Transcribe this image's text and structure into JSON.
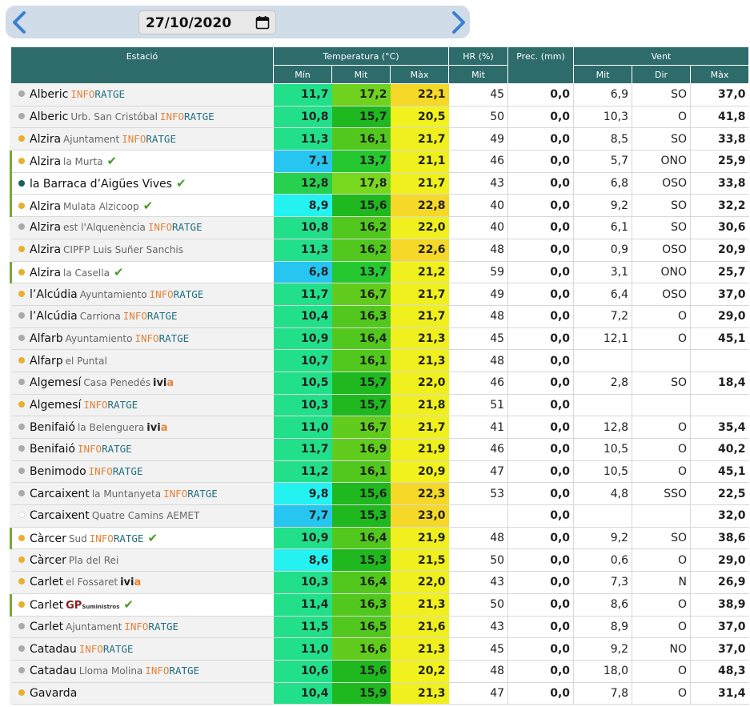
{
  "date": "27/10/2020",
  "header": {
    "estacio": "Estació",
    "temperatura": "Temperatura (°C)",
    "hr": "HR (%)",
    "prec": "Prec. (mm)",
    "vent": "Vent",
    "min": "Mín",
    "mit": "Mit",
    "max": "Màx",
    "hr_mit": "Mit",
    "vent_mit": "Mit",
    "vent_dir": "Dir",
    "vent_max": "Màx"
  },
  "rows": [
    {
      "town": "Alberic",
      "loc": "",
      "src": "inforatge",
      "check": false,
      "hl": false,
      "dot": "#aaaaaa",
      "min": "11,7",
      "mit": "17,2",
      "max": "22,1",
      "hr": "45",
      "prec": "0,0",
      "vmit": "6,9",
      "vdir": "SO",
      "vmax": "37,0",
      "cmin": "#22e08a",
      "cmit": "#6ed21e",
      "cmax": "#f5d828"
    },
    {
      "town": "Alberic",
      "loc": "Urb. San Cristóbal",
      "src": "inforatge",
      "check": false,
      "hl": false,
      "dot": "#aaaaaa",
      "min": "10,8",
      "mit": "15,7",
      "max": "20,5",
      "hr": "50",
      "prec": "0,0",
      "vmit": "10,3",
      "vdir": "O",
      "vmax": "41,8",
      "cmin": "#22e08a",
      "cmit": "#1fb81e",
      "cmax": "#f2f21e"
    },
    {
      "town": "Alzira",
      "loc": "Ajuntament",
      "src": "inforatge",
      "check": false,
      "hl": false,
      "dot": "#e8b030",
      "min": "11,3",
      "mit": "16,1",
      "max": "21,7",
      "hr": "49",
      "prec": "0,0",
      "vmit": "8,5",
      "vdir": "SO",
      "vmax": "33,8",
      "cmin": "#22e08a",
      "cmit": "#52c81e",
      "cmax": "#f0f01e"
    },
    {
      "town": "Alzira",
      "loc": "la Murta",
      "src": "",
      "check": true,
      "hl": true,
      "dot": "#e8b030",
      "min": "7,1",
      "mit": "13,7",
      "max": "21,1",
      "hr": "46",
      "prec": "0,0",
      "vmit": "5,7",
      "vdir": "ONO",
      "vmax": "25,9",
      "cmin": "#26c6f0",
      "cmit": "#26c830",
      "cmax": "#f0f01e"
    },
    {
      "town": "la Barraca d’Aigües Vives",
      "loc": "",
      "src": "",
      "check": true,
      "hl": true,
      "dot": "#1a6060",
      "min": "12,8",
      "mit": "17,8",
      "max": "21,7",
      "hr": "43",
      "prec": "0,0",
      "vmit": "6,8",
      "vdir": "OSO",
      "vmax": "33,8",
      "cmin": "#28d050",
      "cmit": "#78d81e",
      "cmax": "#f0f01e"
    },
    {
      "town": "Alzira",
      "loc": "Mulata Alzicoop",
      "src": "",
      "check": true,
      "hl": true,
      "dot": "#e8b030",
      "min": "8,9",
      "mit": "15,6",
      "max": "22,8",
      "hr": "40",
      "prec": "0,0",
      "vmit": "9,2",
      "vdir": "SO",
      "vmax": "32,2",
      "cmin": "#24f2f0",
      "cmit": "#1fb81e",
      "cmax": "#f5d828"
    },
    {
      "town": "Alzira",
      "loc": "est l'Alquenència",
      "src": "inforatge",
      "check": false,
      "hl": false,
      "dot": "#aaaaaa",
      "min": "10,8",
      "mit": "16,2",
      "max": "22,0",
      "hr": "40",
      "prec": "0,0",
      "vmit": "6,1",
      "vdir": "SO",
      "vmax": "30,6",
      "cmin": "#22e08a",
      "cmit": "#52c81e",
      "cmax": "#f0f01e"
    },
    {
      "town": "Alzira",
      "loc": "CIPFP Luis Suñer Sanchis",
      "src": "",
      "check": false,
      "hl": false,
      "dot": "#e8b030",
      "min": "11,3",
      "mit": "16,2",
      "max": "22,6",
      "hr": "48",
      "prec": "0,0",
      "vmit": "0,9",
      "vdir": "OSO",
      "vmax": "20,9",
      "cmin": "#22e08a",
      "cmit": "#52c81e",
      "cmax": "#f5d828"
    },
    {
      "town": "Alzira",
      "loc": "la Casella",
      "src": "",
      "check": true,
      "hl": true,
      "dot": "#e8b030",
      "min": "6,8",
      "mit": "13,7",
      "max": "21,2",
      "hr": "59",
      "prec": "0,0",
      "vmit": "3,1",
      "vdir": "ONO",
      "vmax": "25,7",
      "cmin": "#26c6f0",
      "cmit": "#26c830",
      "cmax": "#f0f01e"
    },
    {
      "town": "l’Alcúdia",
      "loc": "Ayuntamiento",
      "src": "inforatge",
      "check": false,
      "hl": false,
      "dot": "#e8b030",
      "min": "11,7",
      "mit": "16,7",
      "max": "21,7",
      "hr": "49",
      "prec": "0,0",
      "vmit": "6,4",
      "vdir": "OSO",
      "vmax": "37,0",
      "cmin": "#22e08a",
      "cmit": "#62cc1e",
      "cmax": "#f0f01e"
    },
    {
      "town": "l’Alcúdia",
      "loc": "Carriona",
      "src": "inforatge",
      "check": false,
      "hl": false,
      "dot": "#aaaaaa",
      "min": "10,4",
      "mit": "16,3",
      "max": "21,7",
      "hr": "48",
      "prec": "0,0",
      "vmit": "7,2",
      "vdir": "O",
      "vmax": "29,0",
      "cmin": "#22e08a",
      "cmit": "#52c81e",
      "cmax": "#f0f01e"
    },
    {
      "town": "Alfarb",
      "loc": "Ayuntamiento",
      "src": "inforatge",
      "check": false,
      "hl": false,
      "dot": "#aaaaaa",
      "min": "10,9",
      "mit": "16,4",
      "max": "21,3",
      "hr": "45",
      "prec": "0,0",
      "vmit": "12,1",
      "vdir": "O",
      "vmax": "45,1",
      "cmin": "#22e08a",
      "cmit": "#52c81e",
      "cmax": "#f0f01e"
    },
    {
      "town": "Alfarp",
      "loc": "el Puntal",
      "src": "",
      "check": false,
      "hl": false,
      "dot": "#e8b030",
      "min": "10,7",
      "mit": "16,1",
      "max": "21,3",
      "hr": "48",
      "prec": "0,0",
      "vmit": "",
      "vdir": "",
      "vmax": "",
      "cmin": "#22e08a",
      "cmit": "#52c81e",
      "cmax": "#f0f01e"
    },
    {
      "town": "Algemesí",
      "loc": "Casa Penedés",
      "src": "ivia",
      "check": false,
      "hl": false,
      "dot": "#aaaaaa",
      "min": "10,5",
      "mit": "15,7",
      "max": "22,0",
      "hr": "46",
      "prec": "0,0",
      "vmit": "2,8",
      "vdir": "SO",
      "vmax": "18,4",
      "cmin": "#22e08a",
      "cmit": "#1fb81e",
      "cmax": "#f0f01e"
    },
    {
      "town": "Algemesí",
      "loc": "",
      "src": "inforatge",
      "check": false,
      "hl": false,
      "dot": "#e8b030",
      "min": "10,3",
      "mit": "15,7",
      "max": "21,8",
      "hr": "51",
      "prec": "0,0",
      "vmit": "",
      "vdir": "",
      "vmax": "",
      "cmin": "#22e08a",
      "cmit": "#1fb81e",
      "cmax": "#f0f01e"
    },
    {
      "town": "Benifaió",
      "loc": "la Belenguera",
      "src": "ivia",
      "check": false,
      "hl": false,
      "dot": "#aaaaaa",
      "min": "11,0",
      "mit": "16,7",
      "max": "21,7",
      "hr": "41",
      "prec": "0,0",
      "vmit": "12,8",
      "vdir": "O",
      "vmax": "35,4",
      "cmin": "#22e08a",
      "cmit": "#62cc1e",
      "cmax": "#f0f01e"
    },
    {
      "town": "Benifaió",
      "loc": "",
      "src": "inforatge",
      "check": false,
      "hl": false,
      "dot": "#aaaaaa",
      "min": "11,7",
      "mit": "16,9",
      "max": "21,9",
      "hr": "46",
      "prec": "0,0",
      "vmit": "10,5",
      "vdir": "O",
      "vmax": "40,2",
      "cmin": "#22e08a",
      "cmit": "#62cc1e",
      "cmax": "#f0f01e"
    },
    {
      "town": "Benimodo",
      "loc": "",
      "src": "inforatge",
      "check": false,
      "hl": false,
      "dot": "#aaaaaa",
      "min": "11,2",
      "mit": "16,1",
      "max": "20,9",
      "hr": "47",
      "prec": "0,0",
      "vmit": "10,5",
      "vdir": "O",
      "vmax": "45,1",
      "cmin": "#22e08a",
      "cmit": "#52c81e",
      "cmax": "#f2f21e"
    },
    {
      "town": "Carcaixent",
      "loc": "la Muntanyeta",
      "src": "inforatge",
      "check": false,
      "hl": false,
      "dot": "#aaaaaa",
      "min": "9,8",
      "mit": "15,6",
      "max": "22,3",
      "hr": "53",
      "prec": "0,0",
      "vmit": "4,8",
      "vdir": "SSO",
      "vmax": "22,5",
      "cmin": "#24f2f0",
      "cmit": "#1fb81e",
      "cmax": "#f5d828"
    },
    {
      "town": "Carcaixent",
      "loc": "Quatre Camins AEMET",
      "src": "",
      "check": false,
      "hl": false,
      "dot": "none",
      "min": "7,7",
      "mit": "15,3",
      "max": "23,0",
      "hr": "",
      "prec": "0,0",
      "vmit": "",
      "vdir": "",
      "vmax": "32,0",
      "cmin": "#26c6f0",
      "cmit": "#1fb81e",
      "cmax": "#f5d828"
    },
    {
      "town": "Càrcer",
      "loc": "Sud",
      "src": "inforatge",
      "check": true,
      "hl": true,
      "dot": "#e8b030",
      "min": "10,9",
      "mit": "16,4",
      "max": "21,9",
      "hr": "48",
      "prec": "0,0",
      "vmit": "9,2",
      "vdir": "SO",
      "vmax": "38,6",
      "cmin": "#22e08a",
      "cmit": "#52c81e",
      "cmax": "#f0f01e"
    },
    {
      "town": "Càrcer",
      "loc": "Pla del Rei",
      "src": "",
      "check": false,
      "hl": false,
      "dot": "#e8b030",
      "min": "8,6",
      "mit": "15,3",
      "max": "21,5",
      "hr": "50",
      "prec": "0,0",
      "vmit": "0,6",
      "vdir": "O",
      "vmax": "29,0",
      "cmin": "#24f2f0",
      "cmit": "#1fb81e",
      "cmax": "#f0f01e"
    },
    {
      "town": "Carlet",
      "loc": "el Fossaret",
      "src": "ivia",
      "check": false,
      "hl": false,
      "dot": "#e8b030",
      "min": "10,3",
      "mit": "16,4",
      "max": "22,0",
      "hr": "43",
      "prec": "0,0",
      "vmit": "7,3",
      "vdir": "N",
      "vmax": "26,9",
      "cmin": "#22e08a",
      "cmit": "#52c81e",
      "cmax": "#f0f01e"
    },
    {
      "town": "Carlet",
      "loc": "",
      "src": "gp",
      "check": true,
      "hl": true,
      "dot": "#e8b030",
      "min": "11,4",
      "mit": "16,3",
      "max": "21,3",
      "hr": "50",
      "prec": "0,0",
      "vmit": "8,6",
      "vdir": "O",
      "vmax": "38,9",
      "cmin": "#22e08a",
      "cmit": "#52c81e",
      "cmax": "#f0f01e"
    },
    {
      "town": "Carlet",
      "loc": "Ajuntament",
      "src": "inforatge",
      "check": false,
      "hl": false,
      "dot": "#aaaaaa",
      "min": "11,5",
      "mit": "16,5",
      "max": "21,6",
      "hr": "43",
      "prec": "0,0",
      "vmit": "8,9",
      "vdir": "O",
      "vmax": "37,0",
      "cmin": "#22e08a",
      "cmit": "#52c81e",
      "cmax": "#f0f01e"
    },
    {
      "town": "Catadau",
      "loc": "",
      "src": "inforatge",
      "check": false,
      "hl": false,
      "dot": "#aaaaaa",
      "min": "11,0",
      "mit": "16,6",
      "max": "21,3",
      "hr": "45",
      "prec": "0,0",
      "vmit": "9,2",
      "vdir": "NO",
      "vmax": "37,0",
      "cmin": "#22e08a",
      "cmit": "#62cc1e",
      "cmax": "#f0f01e"
    },
    {
      "town": "Catadau",
      "loc": "Lloma Molina",
      "src": "inforatge",
      "check": false,
      "hl": false,
      "dot": "#aaaaaa",
      "min": "10,6",
      "mit": "15,6",
      "max": "20,2",
      "hr": "48",
      "prec": "0,0",
      "vmit": "18,0",
      "vdir": "O",
      "vmax": "48,3",
      "cmin": "#22e08a",
      "cmit": "#1fb81e",
      "cmax": "#f2f21e"
    },
    {
      "town": "Gavarda",
      "loc": "",
      "src": "",
      "check": false,
      "hl": false,
      "dot": "#e8b030",
      "min": "10,4",
      "mit": "15,9",
      "max": "21,3",
      "hr": "47",
      "prec": "0,0",
      "vmit": "7,8",
      "vdir": "O",
      "vmax": "31,4",
      "cmin": "#22e08a",
      "cmit": "#1fb81e",
      "cmax": "#f0f01e"
    }
  ],
  "brand": {
    "inforatge_a": "INFO",
    "inforatge_b": "RATGE",
    "ivia_a": "ivi",
    "ivia_b": "a",
    "gp_a": "GP",
    "gp_b": "Suministros"
  }
}
